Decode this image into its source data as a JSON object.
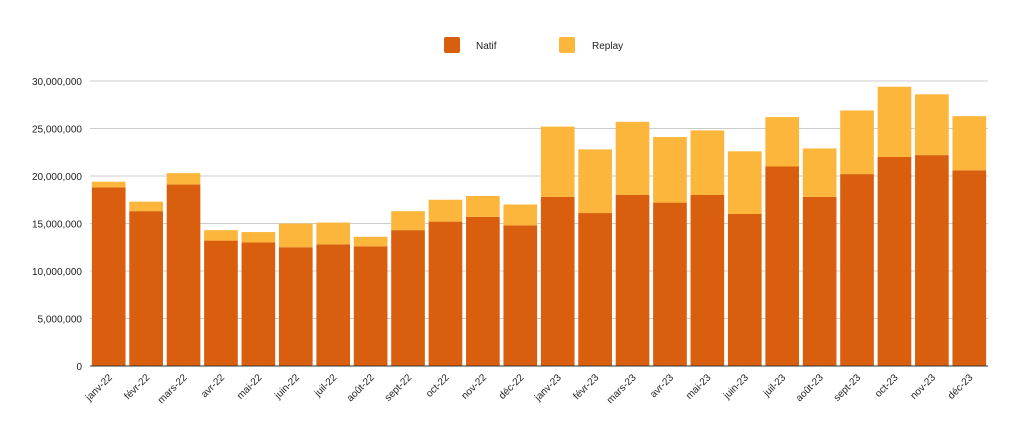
{
  "chart_data": {
    "type": "bar",
    "stacked": true,
    "categories": [
      "janv-22",
      "févr-22",
      "mars-22",
      "avr-22",
      "mai-22",
      "juin-22",
      "juil-22",
      "août-22",
      "sept-22",
      "oct-22",
      "nov-22",
      "déc-22",
      "janv-23",
      "févr-23",
      "mars-23",
      "avr-23",
      "mai-23",
      "juin-23",
      "juil-23",
      "août-23",
      "sept-23",
      "oct-23",
      "nov-23",
      "déc-23"
    ],
    "series": [
      {
        "name": "Natif",
        "color": "#D95F0E",
        "values": [
          18800000,
          16300000,
          19100000,
          13200000,
          13000000,
          12500000,
          12800000,
          12600000,
          14300000,
          15200000,
          15700000,
          14800000,
          17800000,
          16100000,
          18000000,
          17200000,
          18000000,
          16000000,
          21000000,
          17800000,
          20200000,
          22000000,
          22200000,
          20600000
        ]
      },
      {
        "name": "Replay",
        "color": "#FBB63B",
        "values": [
          600000,
          1000000,
          1200000,
          1100000,
          1100000,
          2500000,
          2300000,
          1000000,
          2000000,
          2300000,
          2200000,
          2200000,
          7400000,
          6700000,
          7700000,
          6900000,
          6800000,
          6600000,
          5200000,
          5100000,
          6700000,
          7400000,
          6400000,
          5700000
        ]
      }
    ],
    "ylim": [
      0,
      30000000
    ],
    "y_ticks": [
      "0",
      "5,000,000",
      "10,000,000",
      "15,000,000",
      "20,000,000",
      "25,000,000",
      "30,000,000"
    ],
    "y_tick_values": [
      0,
      5000000,
      10000000,
      15000000,
      20000000,
      25000000,
      30000000
    ],
    "grid": true,
    "legend_position": "top-center",
    "title": "",
    "xlabel": "",
    "ylabel": ""
  }
}
